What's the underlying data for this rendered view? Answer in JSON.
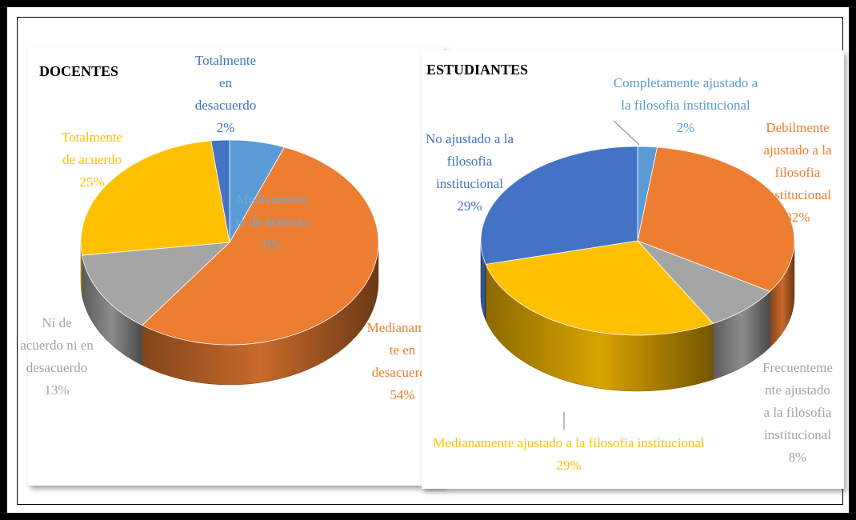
{
  "colors": {
    "blue_light": "#5B9BD5",
    "orange": "#ED7D31",
    "gray": "#A5A5A5",
    "yellow": "#FFC000",
    "blue_dark": "#4472C4"
  },
  "chart_data": [
    {
      "type": "pie",
      "style": "3d",
      "title": "DOCENTES",
      "slices": [
        {
          "name": "Totalmente en desacuerdo",
          "value": 2,
          "label_lines": [
            "Totalmente",
            "en",
            "desacuerdo",
            "2%"
          ],
          "color": "#4472C4"
        },
        {
          "name": "Medianamente de acuerdo",
          "value": 6,
          "label_lines": [
            "Medianamen",
            "te de acuerdo",
            "6%"
          ],
          "color": "#5B9BD5"
        },
        {
          "name": "Medianamente en desacuerdo",
          "value": 54,
          "label_lines": [
            "Medianamen",
            "te en",
            "desacuerdo",
            "54%"
          ],
          "color": "#ED7D31"
        },
        {
          "name": "Ni de acuerdo ni en desacuerdo",
          "value": 13,
          "label_lines": [
            "Ni de",
            "acuerdo ni en",
            "desacuerdo",
            "13%"
          ],
          "color": "#A5A5A5"
        },
        {
          "name": "Totalmente de acuerdo",
          "value": 25,
          "label_lines": [
            "Totalmente",
            "de acuerdo",
            "25%"
          ],
          "color": "#FFC000"
        }
      ]
    },
    {
      "type": "pie",
      "style": "3d",
      "title": "ESTUDIANTES",
      "slices": [
        {
          "name": "Completamente ajustado a la filosofia institucional",
          "value": 2,
          "label_lines": [
            "Completamente  ajustado a",
            "la filosofia institucional",
            "2%"
          ],
          "color": "#5B9BD5"
        },
        {
          "name": "Debilmente ajustado a la filosofia institucional",
          "value": 32,
          "label_lines": [
            "Debilmente",
            "ajustado a la",
            "filosofia",
            "institucional",
            "32%"
          ],
          "color": "#ED7D31"
        },
        {
          "name": "Frecuentemente ajustado a la filosofia institucional",
          "value": 8,
          "label_lines": [
            "Frecuenteme",
            "nte ajustado",
            "a la filosofia",
            "institucional",
            "8%"
          ],
          "color": "#A5A5A5"
        },
        {
          "name": "Medianamente ajustado a la filosofia institucional",
          "value": 29,
          "label_lines": [
            "Medianamente  ajustado a la filosofia institucional",
            "29%"
          ],
          "color": "#FFC000"
        },
        {
          "name": "No ajustado a la filosofia institucional",
          "value": 29,
          "label_lines": [
            "No ajustado a la",
            "filosofia",
            "institucional",
            "29%"
          ],
          "color": "#4472C4"
        }
      ]
    }
  ]
}
